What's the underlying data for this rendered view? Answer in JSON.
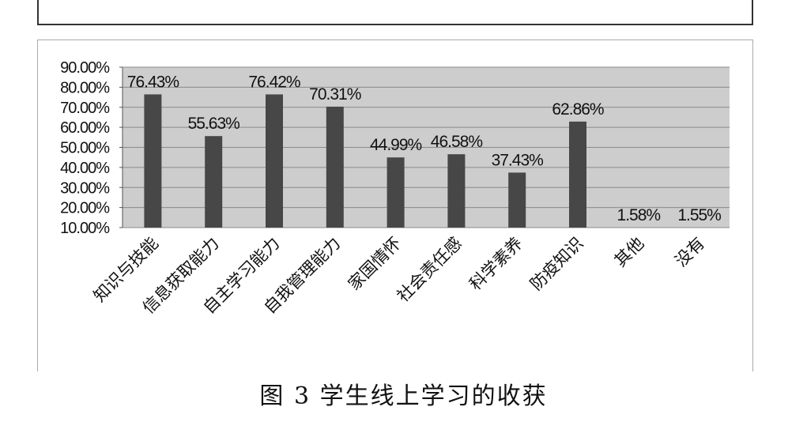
{
  "caption": "图 3  学生线上学习的收获",
  "chart_data": {
    "type": "bar",
    "categories": [
      "知识与技能",
      "信息获取能力",
      "自主学习能力",
      "自我管理能力",
      "家国情怀",
      "社会责任感",
      "科学素养",
      "防疫知识",
      "其他",
      "没有"
    ],
    "values": [
      76.43,
      55.63,
      76.42,
      70.31,
      44.99,
      46.58,
      37.43,
      62.86,
      1.58,
      1.55
    ],
    "value_labels": [
      "76.43%",
      "55.63%",
      "76.42%",
      "70.31%",
      "44.99%",
      "46.58%",
      "37.43%",
      "62.86%",
      "1.58%",
      "1.55%"
    ],
    "yticks": [
      "10.00%",
      "20.00%",
      "30.00%",
      "40.00%",
      "50.00%",
      "60.00%",
      "70.00%",
      "80.00%",
      "90.00%"
    ],
    "ylim": [
      10,
      90
    ],
    "grid": true,
    "title": "",
    "xlabel": "",
    "ylabel": "",
    "colors": {
      "bar": "#474747",
      "plot_bg": "#cdcdcd",
      "grid": "#8a8a8a"
    }
  }
}
